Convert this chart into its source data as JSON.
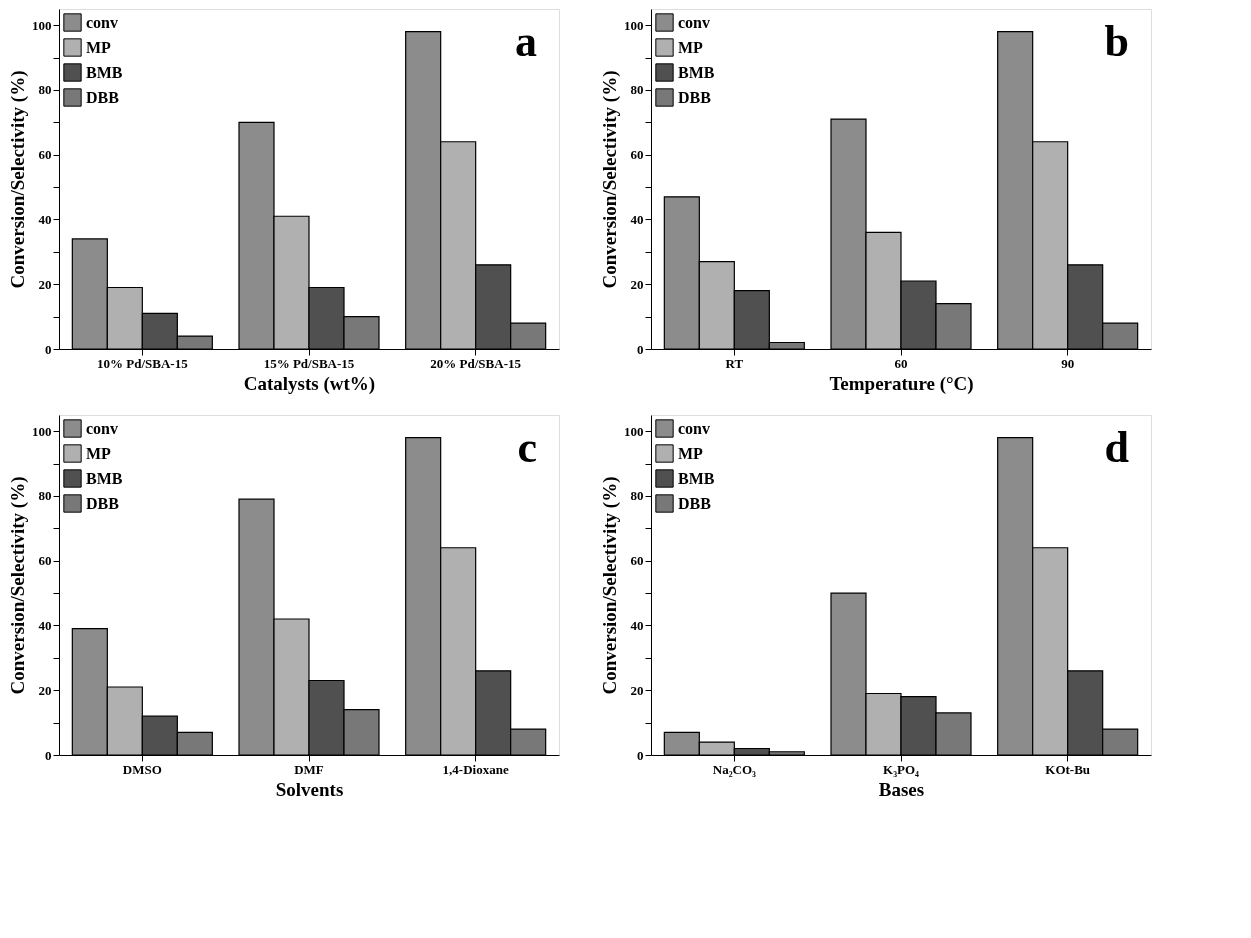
{
  "chart_data": [
    {
      "type": "bar",
      "xlabel": "Catalysts (wt%)",
      "ylabel": "Conversion/Selectivity (%)",
      "annotations": [
        "a"
      ],
      "categories": [
        "10% Pd/SBA-15",
        "15% Pd/SBA-15",
        "20% Pd/SBA-15"
      ],
      "ylim": [
        0,
        105
      ],
      "yticks": [
        0,
        {
          "value": 10,
          "label": null
        },
        20,
        {
          "value": 30,
          "label": null
        },
        40,
        {
          "value": 50,
          "label": null
        },
        60,
        {
          "value": 70,
          "label": null
        },
        80,
        {
          "value": 90,
          "label": null
        },
        100
      ],
      "grid": false,
      "legend": "top left",
      "series": [
        {
          "name": "conv",
          "color": "#8c8c8c",
          "values": [
            34,
            70,
            98
          ]
        },
        {
          "name": "MP",
          "color": "#b0b0b0",
          "values": [
            19,
            41,
            64
          ]
        },
        {
          "name": "BMB",
          "color": "#505050",
          "values": [
            11,
            19,
            26
          ]
        },
        {
          "name": "DBB",
          "color": "#787878",
          "values": [
            4,
            10,
            8
          ]
        }
      ]
    },
    {
      "type": "bar",
      "xlabel": "Temperature (°C)",
      "ylabel": "Conversion/Selectivity (%)",
      "annotations": [
        "b"
      ],
      "categories": [
        "RT",
        "60",
        "90"
      ],
      "ylim": [
        0,
        105
      ],
      "yticks": [
        0,
        {
          "value": 10,
          "label": null
        },
        20,
        {
          "value": 30,
          "label": null
        },
        40,
        {
          "value": 50,
          "label": null
        },
        60,
        {
          "value": 70,
          "label": null
        },
        80,
        {
          "value": 90,
          "label": null
        },
        100
      ],
      "grid": false,
      "legend": "top left",
      "series": [
        {
          "name": "conv",
          "color": "#8c8c8c",
          "values": [
            47,
            71,
            98
          ]
        },
        {
          "name": "MP",
          "color": "#b0b0b0",
          "values": [
            27,
            36,
            64
          ]
        },
        {
          "name": "BMB",
          "color": "#505050",
          "values": [
            18,
            21,
            26
          ]
        },
        {
          "name": "DBB",
          "color": "#787878",
          "values": [
            2,
            14,
            8
          ]
        }
      ]
    },
    {
      "type": "bar",
      "xlabel": "Solvents",
      "ylabel": "Conversion/Selectivity (%)",
      "annotations": [
        "c"
      ],
      "categories": [
        "DMSO",
        "DMF",
        "1,4-Dioxane"
      ],
      "ylim": [
        0,
        105
      ],
      "yticks": [
        0,
        {
          "value": 10,
          "label": null
        },
        20,
        {
          "value": 30,
          "label": null
        },
        40,
        {
          "value": 50,
          "label": null
        },
        60,
        {
          "value": 70,
          "label": null
        },
        80,
        {
          "value": 90,
          "label": null
        },
        100
      ],
      "grid": false,
      "legend": "top left",
      "series": [
        {
          "name": "conv",
          "color": "#8c8c8c",
          "values": [
            39,
            79,
            98
          ]
        },
        {
          "name": "MP",
          "color": "#b0b0b0",
          "values": [
            21,
            42,
            64
          ]
        },
        {
          "name": "BMB",
          "color": "#505050",
          "values": [
            12,
            23,
            26
          ]
        },
        {
          "name": "DBB",
          "color": "#787878",
          "values": [
            7,
            14,
            8
          ]
        }
      ]
    },
    {
      "type": "bar",
      "xlabel": "Bases",
      "ylabel": "Conversion/Selectivity (%)",
      "annotations": [
        "d"
      ],
      "categories": [
        "Na₂CO₃",
        "K₃PO₄",
        "KOt-Bu"
      ],
      "ylim": [
        0,
        105
      ],
      "yticks": [
        0,
        {
          "value": 10,
          "label": null
        },
        20,
        {
          "value": 30,
          "label": null
        },
        40,
        {
          "value": 50,
          "label": null
        },
        60,
        {
          "value": 70,
          "label": null
        },
        80,
        {
          "value": 90,
          "label": null
        },
        100
      ],
      "grid": false,
      "legend": "top left",
      "series": [
        {
          "name": "conv",
          "color": "#8c8c8c",
          "values": [
            7,
            50,
            98
          ]
        },
        {
          "name": "MP",
          "color": "#b0b0b0",
          "values": [
            4,
            19,
            64
          ]
        },
        {
          "name": "BMB",
          "color": "#505050",
          "values": [
            2,
            18,
            26
          ]
        },
        {
          "name": "DBB",
          "color": "#787878",
          "values": [
            1,
            13,
            8
          ]
        }
      ]
    }
  ]
}
